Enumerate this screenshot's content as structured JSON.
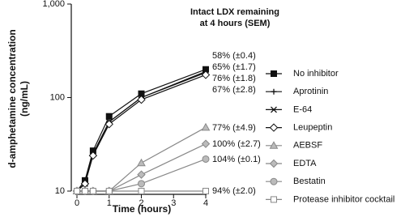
{
  "chart_data": {
    "type": "line",
    "title": [
      "Intact LDX remaining",
      "at 4 hours (SEM)"
    ],
    "xlabel": "Time (hours)",
    "ylabel": [
      "d-amphetamine concentration",
      "(ng/mL)"
    ],
    "log_y": true,
    "x": [
      0,
      0.25,
      0.5,
      1,
      2,
      4
    ],
    "xlim": [
      0,
      4
    ],
    "xticks": [
      0,
      1,
      2,
      3,
      4
    ],
    "ylim": [
      10,
      1000
    ],
    "yticks": [
      10,
      100,
      {
        "value": 1000,
        "label": "1,000"
      }
    ],
    "legend": "right",
    "series": [
      {
        "name": "No inhibitor",
        "color": "#111111",
        "fill": "#111111",
        "marker": "square",
        "values": [
          10,
          13,
          27,
          63,
          110,
          200
        ]
      },
      {
        "name": "Aprotinin",
        "color": "#111111",
        "fill": "#111111",
        "marker": "plus",
        "values": [
          10,
          12,
          25,
          55,
          100,
          190
        ]
      },
      {
        "name": "E-64",
        "color": "#111111",
        "fill": "#111111",
        "marker": "cross",
        "values": [
          10,
          12,
          25,
          55,
          100,
          185
        ]
      },
      {
        "name": "Leupeptin",
        "color": "#111111",
        "fill": "#ffffff",
        "marker": "diamond",
        "values": [
          10,
          12,
          24,
          52,
          95,
          175
        ]
      },
      {
        "name": "AEBSF",
        "color": "#888888",
        "fill": "#bbbbbb",
        "marker": "triangle",
        "values": [
          10,
          10,
          10,
          10,
          20,
          48
        ]
      },
      {
        "name": "EDTA",
        "color": "#888888",
        "fill": "#bbbbbb",
        "marker": "diamond",
        "values": [
          10,
          10,
          10,
          10,
          15,
          32
        ]
      },
      {
        "name": "Bestatin",
        "color": "#888888",
        "fill": "#bbbbbb",
        "marker": "circle",
        "values": [
          10,
          10,
          10,
          10,
          12,
          22
        ]
      },
      {
        "name": "Protease inhibitor cocktail",
        "color": "#888888",
        "fill": "#ffffff",
        "marker": "square",
        "values": [
          10,
          10,
          10,
          10,
          10,
          10
        ]
      }
    ],
    "annotations": [
      "58% (±0.4)",
      "65% (±1.7)",
      "76% (±1.8)",
      "67% (±2.8)",
      "77% (±4.9)",
      "100% (±2.7)",
      "104% (±0.1)",
      "94% (±2.0)"
    ]
  }
}
